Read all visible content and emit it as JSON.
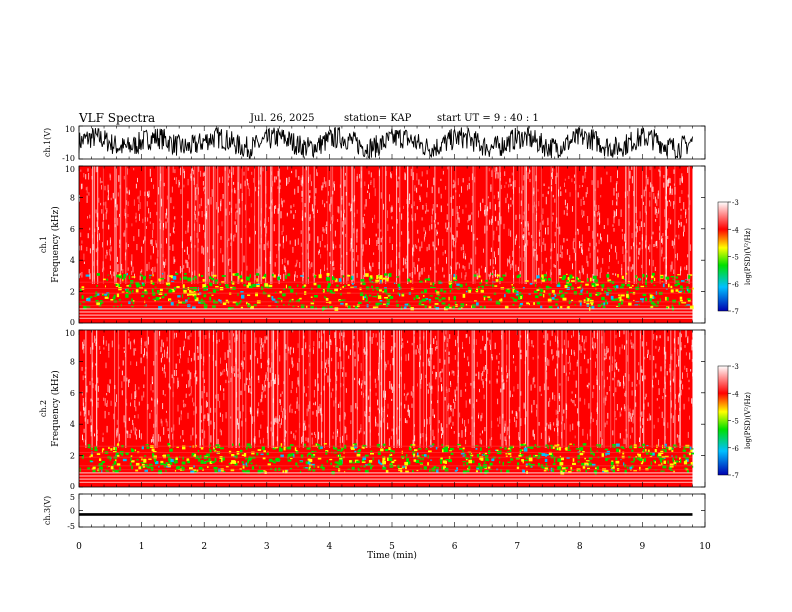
{
  "header": {
    "title": "VLF Spectra",
    "date": "Jul. 26, 2025",
    "station": "station= KAP",
    "start": "start  UT =  9 : 40 : 1"
  },
  "colors": {
    "low": "#0000b0",
    "mid_low": "#00c0ff",
    "mid": "#00e000",
    "mid_high": "#ffff00",
    "high": "#ff0000",
    "max": "#ffffff",
    "trace": "#000000"
  },
  "chart_data": [
    {
      "type": "line",
      "name": "ch1-waveform",
      "ylabel": "ch.1(V)",
      "ylim": [
        -10,
        10
      ],
      "y_ticks": [
        "10",
        "-10"
      ],
      "xlim": [
        0,
        10
      ],
      "series": [
        {
          "name": "ch.1",
          "x": [
            0,
            9.8
          ],
          "amplitude_range": [
            -8,
            8
          ]
        }
      ]
    },
    {
      "type": "heatmap",
      "name": "ch1-spectrogram",
      "ylabel": "ch.1 Frequency (kHz)",
      "ylim": [
        0,
        10
      ],
      "y_ticks": [
        "0",
        "2",
        "4",
        "6",
        "8",
        "10"
      ],
      "xlim": [
        0,
        10
      ],
      "data_extent_min": 9.8,
      "green_band_khz": [
        1,
        3.2
      ],
      "colorbar": {
        "label": "log(PSD)(V²/Hz)",
        "range": [
          -7,
          -3
        ],
        "ticks": [
          "-3",
          "-4",
          "-5",
          "-6",
          "-7"
        ]
      }
    },
    {
      "type": "heatmap",
      "name": "ch2-spectrogram",
      "ylabel": "ch.2 Frequency (kHz)",
      "ylim": [
        0,
        10
      ],
      "y_ticks": [
        "0",
        "2",
        "4",
        "6",
        "8",
        "10"
      ],
      "xlim": [
        0,
        10
      ],
      "data_extent_min": 9.8,
      "green_band_khz": [
        1,
        2.8
      ],
      "colorbar": {
        "label": "log(PSD)(V²/Hz)",
        "range": [
          -7,
          -3
        ],
        "ticks": [
          "-3",
          "-4",
          "-5",
          "-6",
          "-7"
        ]
      }
    },
    {
      "type": "line",
      "name": "ch3-waveform",
      "ylabel": "ch.3(V)",
      "ylim": [
        -5,
        5
      ],
      "y_ticks": [
        "5",
        "0",
        "-5"
      ],
      "xlim": [
        0,
        10
      ],
      "series": [
        {
          "name": "ch.3",
          "x": [
            0,
            9.8
          ],
          "level": -1.2,
          "amplitude": 0.4
        }
      ]
    }
  ],
  "x_axis": {
    "label": "Time (min)",
    "ticks": [
      "0",
      "1",
      "2",
      "3",
      "4",
      "5",
      "6",
      "7",
      "8",
      "9",
      "10"
    ]
  }
}
